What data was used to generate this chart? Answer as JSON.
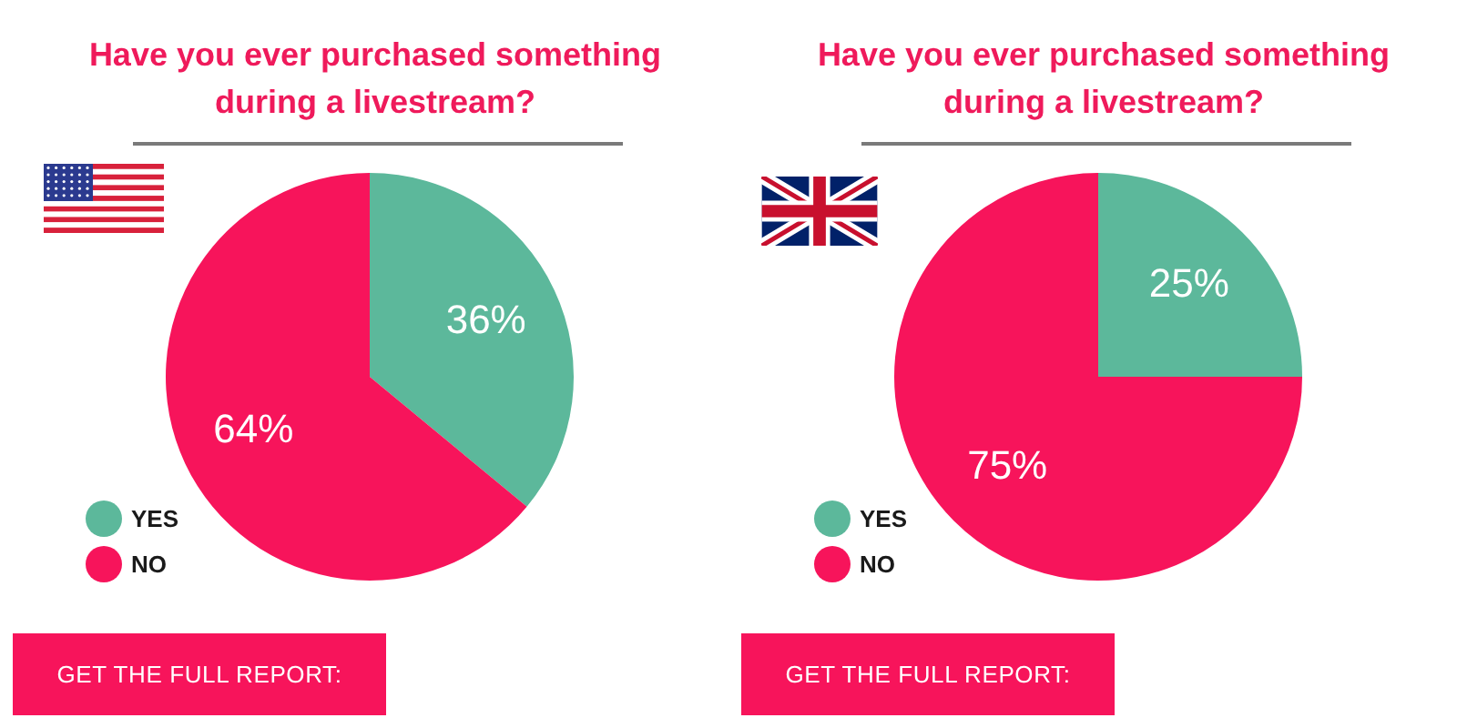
{
  "chart_data": [
    {
      "type": "pie",
      "title": "Have you ever purchased something during a livestream?",
      "categories": [
        "YES",
        "NO"
      ],
      "values": [
        36,
        64
      ],
      "colors": [
        "#5cb89b",
        "#f7145b"
      ],
      "value_labels": [
        "36%",
        "64%"
      ],
      "legend": "bottom left",
      "annotations": [
        "GET THE FULL REPORT:"
      ]
    },
    {
      "type": "pie",
      "title": "Have you ever purchased something during a livestream?",
      "categories": [
        "YES",
        "NO"
      ],
      "values": [
        25,
        75
      ],
      "colors": [
        "#5cb89b",
        "#f7145b"
      ],
      "value_labels": [
        "25%",
        "75%"
      ],
      "legend": "bottom left",
      "annotations": [
        "GET THE FULL REPORT:"
      ]
    }
  ]
}
